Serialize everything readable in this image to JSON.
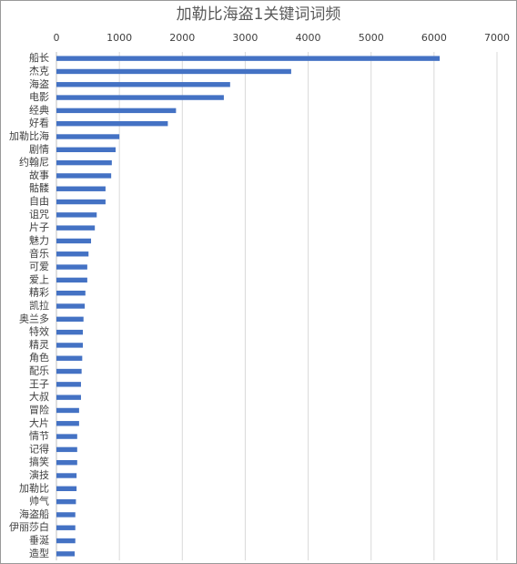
{
  "chart_data": {
    "type": "bar",
    "orientation": "horizontal",
    "title": "加勒比海盗1关键词词频",
    "categories": [
      "船长",
      "杰克",
      "海盗",
      "电影",
      "经典",
      "好看",
      "加勒比海",
      "剧情",
      "约翰尼",
      "故事",
      "骷髅",
      "自由",
      "诅咒",
      "片子",
      "魅力",
      "音乐",
      "可爱",
      "爱上",
      "精彩",
      "凯拉",
      "奥兰多",
      "特效",
      "精灵",
      "角色",
      "配乐",
      "王子",
      "大叔",
      "冒险",
      "大片",
      "情节",
      "记得",
      "搞笑",
      "演技",
      "加勒比",
      "帅气",
      "海盗船",
      "伊丽莎白",
      "垂涎",
      "造型"
    ],
    "values": [
      6090,
      3730,
      2760,
      2660,
      1900,
      1770,
      1000,
      940,
      880,
      870,
      780,
      780,
      640,
      610,
      550,
      510,
      490,
      490,
      460,
      450,
      430,
      420,
      420,
      410,
      400,
      390,
      390,
      360,
      360,
      330,
      330,
      330,
      320,
      320,
      310,
      300,
      300,
      300,
      290
    ],
    "color": "#4472c4",
    "xlim": [
      0,
      7000
    ],
    "xticks": [
      0,
      1000,
      2000,
      3000,
      4000,
      5000,
      6000,
      7000
    ],
    "grid": true
  }
}
